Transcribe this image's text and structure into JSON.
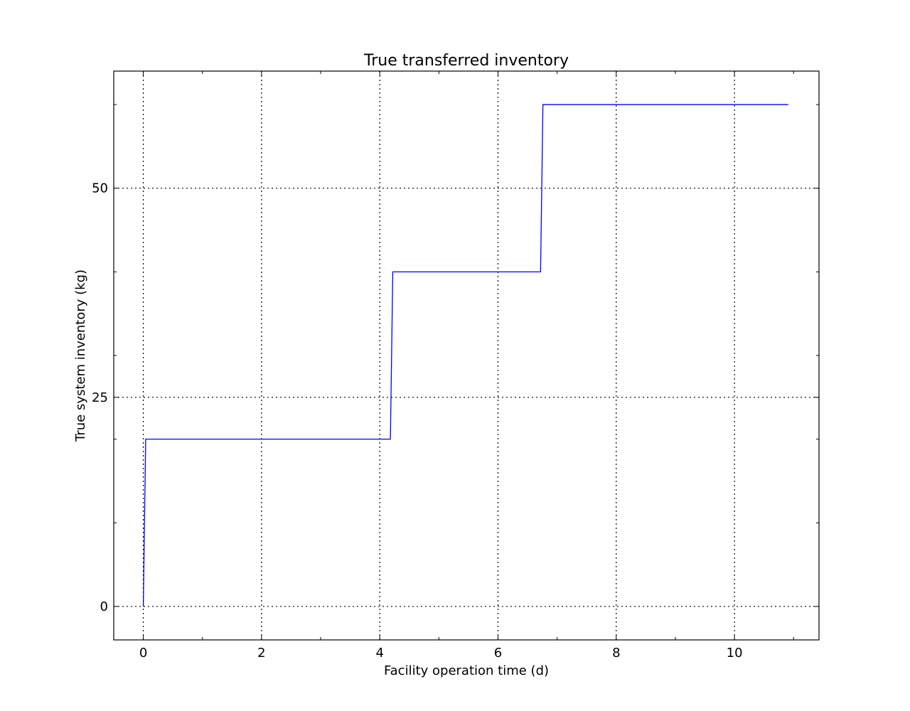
{
  "chart_data": {
    "type": "line",
    "title": "True transferred inventory",
    "xlabel": "Facility operation time (d)",
    "ylabel": "True system inventory (kg)",
    "xlim": [
      -0.5,
      11.43
    ],
    "ylim": [
      -4,
      64
    ],
    "xticks": [
      0,
      2,
      4,
      6,
      8,
      10
    ],
    "yticks": [
      0,
      25,
      50
    ],
    "x_minor_ticks": [
      1,
      3,
      5,
      7,
      9,
      11
    ],
    "y_minor_ticks": [
      10,
      20,
      30,
      40,
      60
    ],
    "grid": true,
    "series": [
      {
        "color": "#0000ff",
        "x": [
          0,
          0.04,
          4.18,
          4.22,
          6.72,
          6.76,
          10.91
        ],
        "y": [
          0,
          20,
          20,
          40,
          40,
          60,
          60
        ]
      }
    ]
  }
}
